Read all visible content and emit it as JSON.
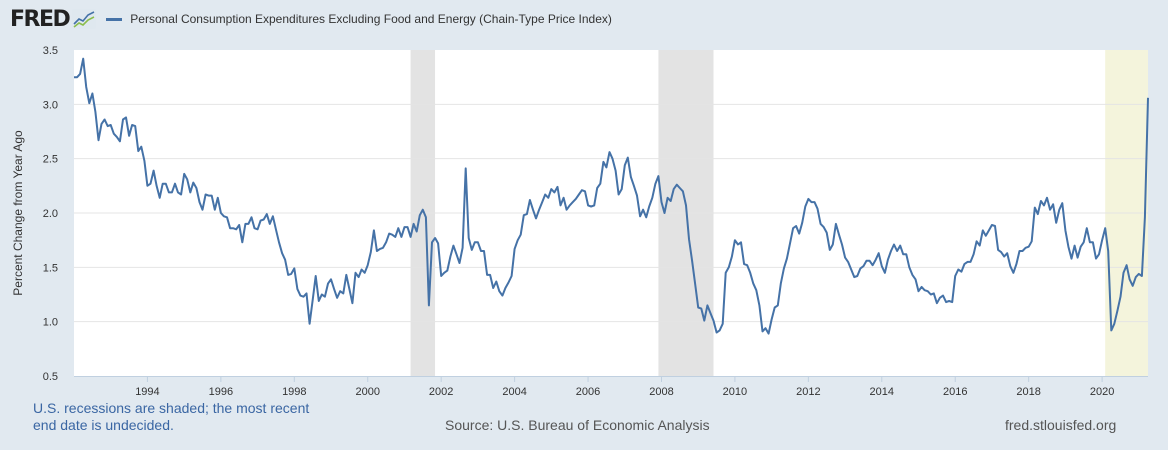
{
  "header": {
    "logo_text": "FRED",
    "legend_label": "Personal Consumption Expenditures Excluding Food and Energy (Chain-Type Price Index)"
  },
  "footer": {
    "recession_note": "U.S. recessions are shaded; the most recent end date is undecided.",
    "source": "Source: U.S. Bureau of Economic Analysis",
    "url": "fred.stlouisfed.org"
  },
  "colors": {
    "series": "#4572a7",
    "recession": "#e3e3e3",
    "recession_undecided": "#f4f4dc",
    "background": "#e1e9f0",
    "grid": "#e4e4e4"
  },
  "chart_data": {
    "type": "line",
    "ylabel": "Percent Change from Year Ago",
    "xlabel": "",
    "ylim": [
      0.5,
      3.5
    ],
    "xlim": [
      "1992-01",
      "2021-04"
    ],
    "yticks": [
      "0.5",
      "1.0",
      "1.5",
      "2.0",
      "2.5",
      "3.0",
      "3.5"
    ],
    "xticks": [
      "1994",
      "1996",
      "1998",
      "2000",
      "2002",
      "2004",
      "2006",
      "2008",
      "2010",
      "2012",
      "2014",
      "2016",
      "2018",
      "2020"
    ],
    "grid": true,
    "legend_placement": "top-left",
    "recessions": [
      {
        "start": "2001-03",
        "end": "2001-11",
        "undecided": false
      },
      {
        "start": "2007-12",
        "end": "2009-06",
        "undecided": false
      },
      {
        "start": "2020-02",
        "end": "2021-04",
        "undecided": true
      }
    ],
    "series": [
      {
        "name": "Personal Consumption Expenditures Excluding Food and Energy (Chain-Type Price Index)",
        "start": "1992-01",
        "frequency": "monthly",
        "values": [
          3.25,
          3.25,
          3.28,
          3.42,
          3.16,
          3.01,
          3.1,
          2.93,
          2.67,
          2.82,
          2.86,
          2.8,
          2.81,
          2.73,
          2.7,
          2.66,
          2.86,
          2.88,
          2.71,
          2.81,
          2.8,
          2.57,
          2.61,
          2.48,
          2.25,
          2.27,
          2.39,
          2.25,
          2.14,
          2.27,
          2.27,
          2.19,
          2.19,
          2.27,
          2.19,
          2.17,
          2.36,
          2.31,
          2.19,
          2.28,
          2.23,
          2.1,
          2.03,
          2.17,
          2.16,
          2.16,
          2.03,
          2.14,
          2.0,
          1.97,
          1.96,
          1.86,
          1.86,
          1.85,
          1.89,
          1.73,
          1.9,
          1.9,
          1.96,
          1.86,
          1.85,
          1.93,
          1.94,
          1.99,
          1.9,
          1.97,
          1.85,
          1.73,
          1.63,
          1.57,
          1.43,
          1.44,
          1.49,
          1.3,
          1.24,
          1.23,
          1.26,
          0.98,
          1.2,
          1.42,
          1.19,
          1.25,
          1.23,
          1.35,
          1.39,
          1.3,
          1.22,
          1.28,
          1.26,
          1.43,
          1.3,
          1.17,
          1.45,
          1.41,
          1.48,
          1.45,
          1.52,
          1.64,
          1.84,
          1.65,
          1.67,
          1.68,
          1.73,
          1.81,
          1.8,
          1.78,
          1.86,
          1.78,
          1.87,
          1.87,
          1.78,
          1.9,
          1.83,
          1.98,
          2.03,
          1.96,
          1.15,
          1.73,
          1.77,
          1.72,
          1.42,
          1.45,
          1.47,
          1.6,
          1.7,
          1.62,
          1.54,
          1.68,
          2.41,
          1.77,
          1.66,
          1.73,
          1.73,
          1.65,
          1.65,
          1.43,
          1.43,
          1.31,
          1.37,
          1.28,
          1.24,
          1.31,
          1.36,
          1.42,
          1.67,
          1.75,
          1.8,
          1.98,
          1.99,
          2.12,
          2.03,
          1.95,
          2.03,
          2.1,
          2.17,
          2.14,
          2.22,
          2.19,
          2.24,
          2.07,
          2.14,
          2.03,
          2.07,
          2.1,
          2.13,
          2.17,
          2.21,
          2.2,
          2.07,
          2.06,
          2.07,
          2.23,
          2.27,
          2.47,
          2.42,
          2.56,
          2.5,
          2.39,
          2.17,
          2.22,
          2.44,
          2.51,
          2.33,
          2.25,
          2.16,
          1.97,
          2.03,
          1.96,
          2.06,
          2.14,
          2.27,
          2.34,
          2.1,
          2.0,
          2.14,
          2.11,
          2.22,
          2.26,
          2.23,
          2.2,
          2.07,
          1.76,
          1.56,
          1.35,
          1.13,
          1.12,
          1.01,
          1.15,
          1.08,
          1.01,
          0.9,
          0.92,
          0.98,
          1.45,
          1.5,
          1.6,
          1.75,
          1.71,
          1.73,
          1.53,
          1.52,
          1.45,
          1.35,
          1.29,
          1.15,
          0.91,
          0.94,
          0.89,
          1.02,
          1.13,
          1.15,
          1.35,
          1.49,
          1.58,
          1.72,
          1.86,
          1.88,
          1.81,
          1.91,
          2.06,
          2.13,
          2.1,
          2.1,
          2.04,
          1.9,
          1.87,
          1.82,
          1.66,
          1.71,
          1.9,
          1.8,
          1.71,
          1.59,
          1.55,
          1.48,
          1.41,
          1.42,
          1.49,
          1.51,
          1.56,
          1.56,
          1.52,
          1.57,
          1.63,
          1.51,
          1.45,
          1.57,
          1.65,
          1.71,
          1.65,
          1.7,
          1.62,
          1.62,
          1.5,
          1.43,
          1.39,
          1.28,
          1.32,
          1.29,
          1.28,
          1.25,
          1.26,
          1.17,
          1.22,
          1.24,
          1.18,
          1.19,
          1.18,
          1.42,
          1.48,
          1.46,
          1.53,
          1.55,
          1.55,
          1.62,
          1.74,
          1.7,
          1.84,
          1.79,
          1.84,
          1.89,
          1.88,
          1.66,
          1.64,
          1.6,
          1.63,
          1.51,
          1.45,
          1.53,
          1.65,
          1.65,
          1.68,
          1.69,
          1.74,
          2.05,
          1.99,
          2.11,
          2.07,
          2.14,
          2.03,
          2.08,
          1.91,
          2.03,
          2.09,
          1.84,
          1.69,
          1.58,
          1.7,
          1.59,
          1.69,
          1.73,
          1.86,
          1.73,
          1.73,
          1.58,
          1.62,
          1.75,
          1.86,
          1.65,
          0.92,
          0.98,
          1.1,
          1.23,
          1.45,
          1.52,
          1.39,
          1.33,
          1.41,
          1.44,
          1.42,
          1.96,
          3.06
        ]
      }
    ]
  }
}
